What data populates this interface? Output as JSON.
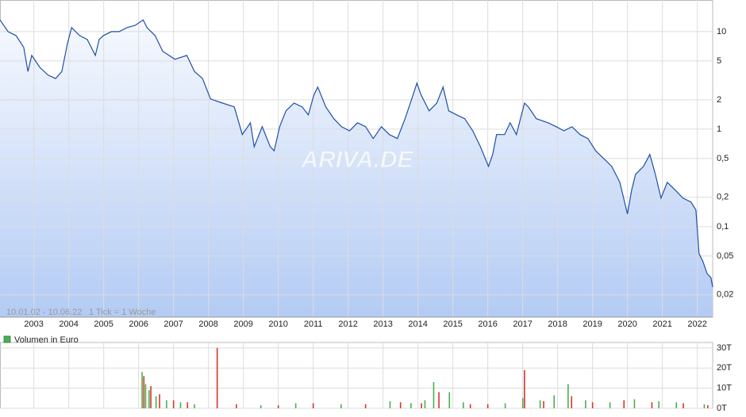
{
  "chart_data": [
    {
      "type": "line",
      "log_y": true,
      "grid": true,
      "color": "#1f4fa8",
      "fill_top": "#f6f9fe",
      "fill_bottom": "#b3cbf4",
      "annotations": [
        "10.01.02 - 10.06.22",
        "1 Tick = 1 Woche"
      ],
      "watermark": "ARIVA.DE",
      "xlim": [
        2002.03,
        2022.44
      ],
      "xticks": [
        2003,
        2004,
        2005,
        2006,
        2007,
        2008,
        2009,
        2010,
        2011,
        2012,
        2013,
        2014,
        2015,
        2016,
        2017,
        2018,
        2019,
        2020,
        2021,
        2022
      ],
      "ylim": [
        0.0118,
        21.1
      ],
      "yticks": [
        10,
        5,
        2,
        1,
        {
          "value": 0.5,
          "label": "0,5"
        },
        {
          "value": 0.2,
          "label": "0,2"
        },
        {
          "value": 0.1,
          "label": "0,1"
        },
        {
          "value": 0.05,
          "label": "0,05"
        },
        {
          "value": 0.02,
          "label": "0,02"
        }
      ],
      "x": [
        2002.03,
        2002.26,
        2002.49,
        2002.71,
        2002.83,
        2002.94,
        2003.17,
        2003.4,
        2003.62,
        2003.8,
        2003.96,
        2004.08,
        2004.31,
        2004.53,
        2004.76,
        2004.87,
        2004.99,
        2005.22,
        2005.44,
        2005.67,
        2005.9,
        2006.13,
        2006.24,
        2006.47,
        2006.69,
        2007.04,
        2007.38,
        2007.6,
        2007.83,
        2008.06,
        2008.4,
        2008.74,
        2008.97,
        2009.2,
        2009.31,
        2009.54,
        2009.77,
        2009.88,
        2010.04,
        2010.22,
        2010.45,
        2010.68,
        2010.86,
        2011.02,
        2011.13,
        2011.36,
        2011.59,
        2011.81,
        2012.04,
        2012.27,
        2012.5,
        2012.72,
        2012.95,
        2013.18,
        2013.41,
        2013.63,
        2013.86,
        2013.97,
        2014.09,
        2014.32,
        2014.54,
        2014.72,
        2014.88,
        2015.11,
        2015.34,
        2015.57,
        2015.79,
        2016.02,
        2016.14,
        2016.25,
        2016.48,
        2016.64,
        2016.82,
        2017.05,
        2017.16,
        2017.39,
        2017.73,
        2017.96,
        2018.18,
        2018.41,
        2018.64,
        2018.87,
        2019.09,
        2019.32,
        2019.55,
        2019.78,
        2020.0,
        2020.12,
        2020.23,
        2020.46,
        2020.64,
        2020.8,
        2020.96,
        2021.14,
        2021.37,
        2021.59,
        2021.82,
        2021.96,
        2022.05,
        2022.16,
        2022.28,
        2022.39,
        2022.44
      ],
      "values": [
        13.2,
        10,
        9.1,
        6.9,
        3.9,
        5.7,
        4.3,
        3.6,
        3.3,
        3.9,
        7.5,
        11.0,
        9.1,
        8.3,
        5.7,
        8.3,
        9.1,
        10,
        10,
        11.0,
        11.6,
        13.2,
        11.0,
        9.1,
        6.3,
        5.2,
        5.7,
        3.9,
        3.3,
        2.04,
        1.85,
        1.69,
        0.88,
        1.16,
        0.66,
        1.06,
        0.66,
        0.6,
        1.06,
        1.54,
        1.85,
        1.69,
        1.4,
        2.24,
        2.7,
        1.69,
        1.28,
        1.06,
        0.96,
        1.16,
        1.06,
        0.8,
        1.06,
        0.88,
        0.8,
        1.28,
        2.24,
        2.96,
        2.24,
        1.54,
        1.85,
        2.7,
        1.54,
        1.4,
        1.28,
        0.96,
        0.66,
        0.415,
        0.55,
        0.88,
        0.88,
        1.16,
        0.88,
        1.85,
        1.69,
        1.28,
        1.16,
        1.06,
        0.96,
        1.06,
        0.88,
        0.8,
        0.6,
        0.5,
        0.415,
        0.285,
        0.135,
        0.237,
        0.344,
        0.415,
        0.55,
        0.344,
        0.196,
        0.285,
        0.237,
        0.196,
        0.179,
        0.148,
        0.053,
        0.044,
        0.033,
        0.03,
        0.024
      ]
    },
    {
      "type": "bar",
      "legend": "Volumen in Euro",
      "legend_color": "#4caf50",
      "ylim": [
        0,
        32700
      ],
      "yticks": [
        {
          "value": 30000,
          "label": "30T"
        },
        {
          "value": 20000,
          "label": "20T"
        },
        {
          "value": 10000,
          "label": "10T"
        },
        {
          "value": 0,
          "label": "0T"
        }
      ],
      "x": [
        2006.1,
        2006.15,
        2006.2,
        2006.3,
        2006.35,
        2006.5,
        2006.6,
        2006.8,
        2007.0,
        2007.2,
        2007.4,
        2007.6,
        2008.25,
        2008.8,
        2009.5,
        2010.0,
        2010.5,
        2011.0,
        2011.8,
        2012.5,
        2013.2,
        2013.5,
        2013.8,
        2014.1,
        2014.2,
        2014.45,
        2014.6,
        2014.9,
        2015.3,
        2015.5,
        2016.0,
        2016.5,
        2017.0,
        2017.05,
        2017.5,
        2017.6,
        2017.9,
        2018.3,
        2018.4,
        2018.8,
        2019.0,
        2019.5,
        2019.9,
        2020.2,
        2020.7,
        2020.9,
        2021.4,
        2021.6,
        2022.2,
        2022.3
      ],
      "values": [
        18000,
        16000,
        12000,
        9000,
        11000,
        6000,
        7000,
        4000,
        4000,
        3000,
        3000,
        2000,
        30000,
        2000,
        1500,
        1500,
        2500,
        2500,
        2000,
        2000,
        3500,
        3000,
        2500,
        2500,
        4000,
        13000,
        8000,
        8000,
        3000,
        2000,
        2000,
        2500,
        5000,
        19000,
        4000,
        3500,
        6500,
        12000,
        6000,
        4000,
        3000,
        3000,
        4000,
        4500,
        3000,
        3500,
        3000,
        2500,
        2000,
        1500
      ],
      "colors": [
        "#4caf50",
        "#d9342b",
        "#4caf50",
        "#4caf50",
        "#d9342b",
        "#4caf50",
        "#d9342b",
        "#4caf50",
        "#d9342b",
        "#4caf50",
        "#d9342b",
        "#4caf50",
        "#d9342b",
        "#d9342b",
        "#4caf50",
        "#d9342b",
        "#4caf50",
        "#d9342b",
        "#4caf50",
        "#d9342b",
        "#4caf50",
        "#d9342b",
        "#4caf50",
        "#d9342b",
        "#4caf50",
        "#4caf50",
        "#d9342b",
        "#4caf50",
        "#4caf50",
        "#d9342b",
        "#d9342b",
        "#4caf50",
        "#4caf50",
        "#d9342b",
        "#4caf50",
        "#d9342b",
        "#4caf50",
        "#4caf50",
        "#d9342b",
        "#4caf50",
        "#d9342b",
        "#4caf50",
        "#d9342b",
        "#4caf50",
        "#d9342b",
        "#4caf50",
        "#4caf50",
        "#d9342b",
        "#4caf50",
        "#d9342b"
      ]
    }
  ]
}
